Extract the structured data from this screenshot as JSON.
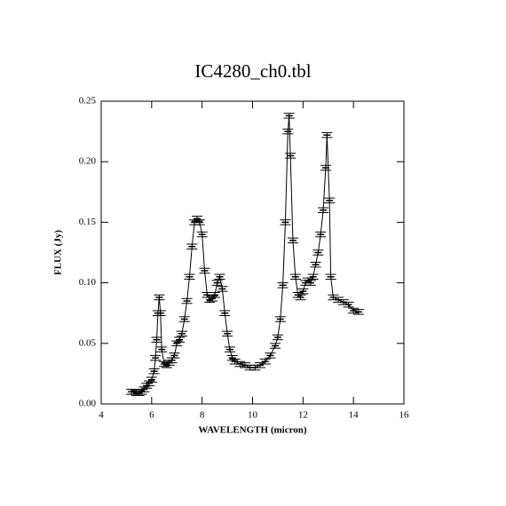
{
  "chart_data": {
    "type": "errorbar",
    "title": "IC4280_ch0.tbl",
    "x_label": "WAVELENGTH (micron)",
    "y_label": "FLUX (Jy)",
    "x": [
      5.2,
      5.3,
      5.4,
      5.5,
      5.6,
      5.7,
      5.8,
      5.9,
      6.0,
      6.1,
      6.15,
      6.2,
      6.25,
      6.3,
      6.35,
      6.4,
      6.5,
      6.6,
      6.7,
      6.8,
      6.9,
      7.0,
      7.1,
      7.2,
      7.3,
      7.4,
      7.5,
      7.6,
      7.7,
      7.8,
      7.9,
      8.0,
      8.1,
      8.2,
      8.3,
      8.4,
      8.5,
      8.6,
      8.7,
      8.8,
      8.9,
      9.0,
      9.1,
      9.2,
      9.3,
      9.5,
      9.7,
      9.9,
      10.1,
      10.3,
      10.5,
      10.7,
      10.9,
      11.0,
      11.1,
      11.2,
      11.3,
      11.4,
      11.45,
      11.5,
      11.6,
      11.7,
      11.8,
      11.9,
      12.0,
      12.1,
      12.2,
      12.3,
      12.4,
      12.5,
      12.6,
      12.7,
      12.8,
      12.9,
      12.95,
      13.05,
      13.1,
      13.2,
      13.4,
      13.6,
      13.8,
      14.0,
      14.2
    ],
    "values": [
      0.01,
      0.01,
      0.009,
      0.009,
      0.01,
      0.012,
      0.015,
      0.017,
      0.02,
      0.027,
      0.038,
      0.053,
      0.075,
      0.088,
      0.075,
      0.045,
      0.033,
      0.032,
      0.034,
      0.036,
      0.04,
      0.05,
      0.053,
      0.058,
      0.07,
      0.085,
      0.105,
      0.13,
      0.15,
      0.153,
      0.15,
      0.14,
      0.11,
      0.09,
      0.086,
      0.087,
      0.09,
      0.1,
      0.105,
      0.095,
      0.075,
      0.058,
      0.045,
      0.038,
      0.035,
      0.033,
      0.032,
      0.03,
      0.03,
      0.032,
      0.035,
      0.04,
      0.048,
      0.055,
      0.07,
      0.098,
      0.15,
      0.225,
      0.238,
      0.205,
      0.135,
      0.105,
      0.09,
      0.088,
      0.093,
      0.1,
      0.102,
      0.1,
      0.105,
      0.115,
      0.125,
      0.14,
      0.16,
      0.195,
      0.222,
      0.168,
      0.105,
      0.088,
      0.086,
      0.084,
      0.082,
      0.077,
      0.076
    ],
    "error": 0.002,
    "color": "#000000",
    "xlim": [
      4,
      16
    ],
    "xticks": [
      4,
      6,
      8,
      10,
      12,
      14,
      16
    ],
    "ylim": [
      0,
      0.25
    ],
    "yticks": [
      {
        "value": 0,
        "label": "0.00"
      },
      {
        "value": 0.05,
        "label": "0.05"
      },
      {
        "value": 0.1,
        "label": "0.10"
      },
      {
        "value": 0.15,
        "label": "0.15"
      },
      {
        "value": 0.2,
        "label": "0.20"
      },
      {
        "value": 0.25,
        "label": "0.25"
      }
    ]
  }
}
